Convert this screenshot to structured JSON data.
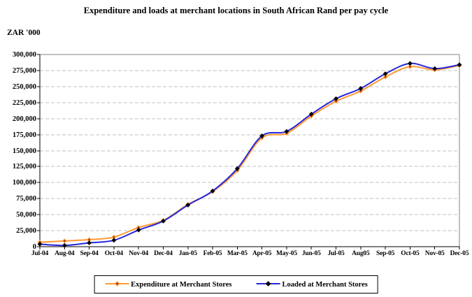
{
  "page": {
    "title": "Expenditure and loads at merchant locations in South African Rand per pay cycle",
    "y_axis_unit": "ZAR '000"
  },
  "chart_data": {
    "type": "line",
    "title": "Expenditure and loads at merchant locations in South African Rand per pay cycle",
    "ylabel": "ZAR '000",
    "xlabel": "",
    "grid": "horizontal-dashed",
    "legend_position": "bottom-center",
    "ylim": [
      0,
      300000
    ],
    "ytick_step": 25000,
    "ytick_labels": [
      "0",
      "25,000",
      "50,000",
      "75,000",
      "100,000",
      "125,000",
      "150,000",
      "175,000",
      "200,000",
      "225,000",
      "250,000",
      "275,000",
      "300,000"
    ],
    "categories": [
      "Jul-04",
      "Aug-04",
      "Sep-04",
      "Oct-04",
      "Nov-04",
      "Dec-04",
      "Jan-05",
      "Feb-05",
      "Mar-05",
      "Apr-05",
      "May-05",
      "Jun-05",
      "Jul-05",
      "Aug05",
      "Sep-05",
      "Oct-05",
      "Nov-05",
      "Dec-05"
    ],
    "series": [
      {
        "name": "Expenditure at Merchant Stores",
        "color": "#FF9933",
        "marker": "diamond",
        "marker_fill": "#FF9933",
        "marker_core": "#993300",
        "values": [
          7000,
          9000,
          11000,
          15000,
          30000,
          41000,
          66000,
          86000,
          119000,
          170000,
          177000,
          204000,
          227000,
          243000,
          265000,
          281000,
          276000,
          283000
        ]
      },
      {
        "name": "Loaded at Merchant Stores",
        "color": "#2626DD",
        "marker": "diamond",
        "marker_fill": "#000000",
        "marker_core": null,
        "values": [
          4000,
          2000,
          6000,
          10000,
          26000,
          40000,
          65000,
          87000,
          122000,
          173000,
          180000,
          207000,
          231000,
          247000,
          270000,
          286000,
          278000,
          284000
        ]
      }
    ],
    "colors": {
      "gridline": "#C0C0C0",
      "plot_border": "#808080",
      "axis": "#000000"
    }
  }
}
